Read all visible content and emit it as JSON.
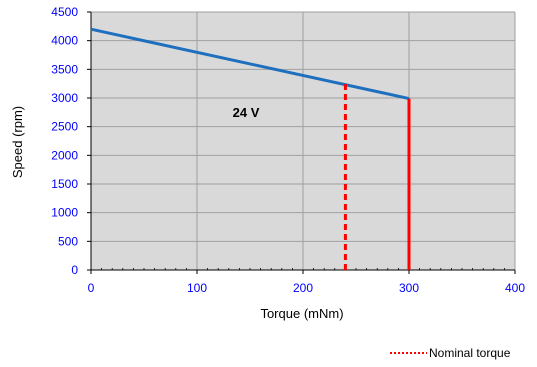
{
  "chart_data": {
    "type": "line",
    "xlabel": "Torque (mNm)",
    "ylabel": "Speed (rpm)",
    "xlim": [
      0,
      400
    ],
    "ylim": [
      0,
      4500
    ],
    "x_ticks": [
      0,
      100,
      200,
      300,
      400
    ],
    "y_ticks": [
      0,
      500,
      1000,
      1500,
      2000,
      2500,
      3000,
      3500,
      4000,
      4500
    ],
    "x_tick_labels": [
      "0",
      "100",
      "200",
      "300",
      "400"
    ],
    "y_tick_labels": [
      "0",
      "500",
      "1000",
      "1500",
      "2000",
      "2500",
      "3000",
      "3500",
      "4000",
      "4500"
    ],
    "grid": true,
    "plot_background": "#d9d9d9",
    "series": [
      {
        "label": "24 V",
        "color": "#1f6fbf",
        "x": [
          0,
          300
        ],
        "y": [
          4200,
          2990
        ]
      }
    ],
    "nominal_torque": {
      "label": "Nominal torque",
      "x": 240,
      "y_top": 3250,
      "color": "#ff0000",
      "style": "dashed"
    },
    "max_torque": {
      "x": 300,
      "y_top": 2990,
      "color": "#ff0000",
      "style": "solid"
    },
    "legend": {
      "placement": "bottom-right",
      "entries": [
        "Nominal torque"
      ]
    },
    "colors": {
      "tick_label": "#0000ff",
      "axis_title": "#000000",
      "grid": "#a0a0a0",
      "axis": "#000000"
    }
  }
}
